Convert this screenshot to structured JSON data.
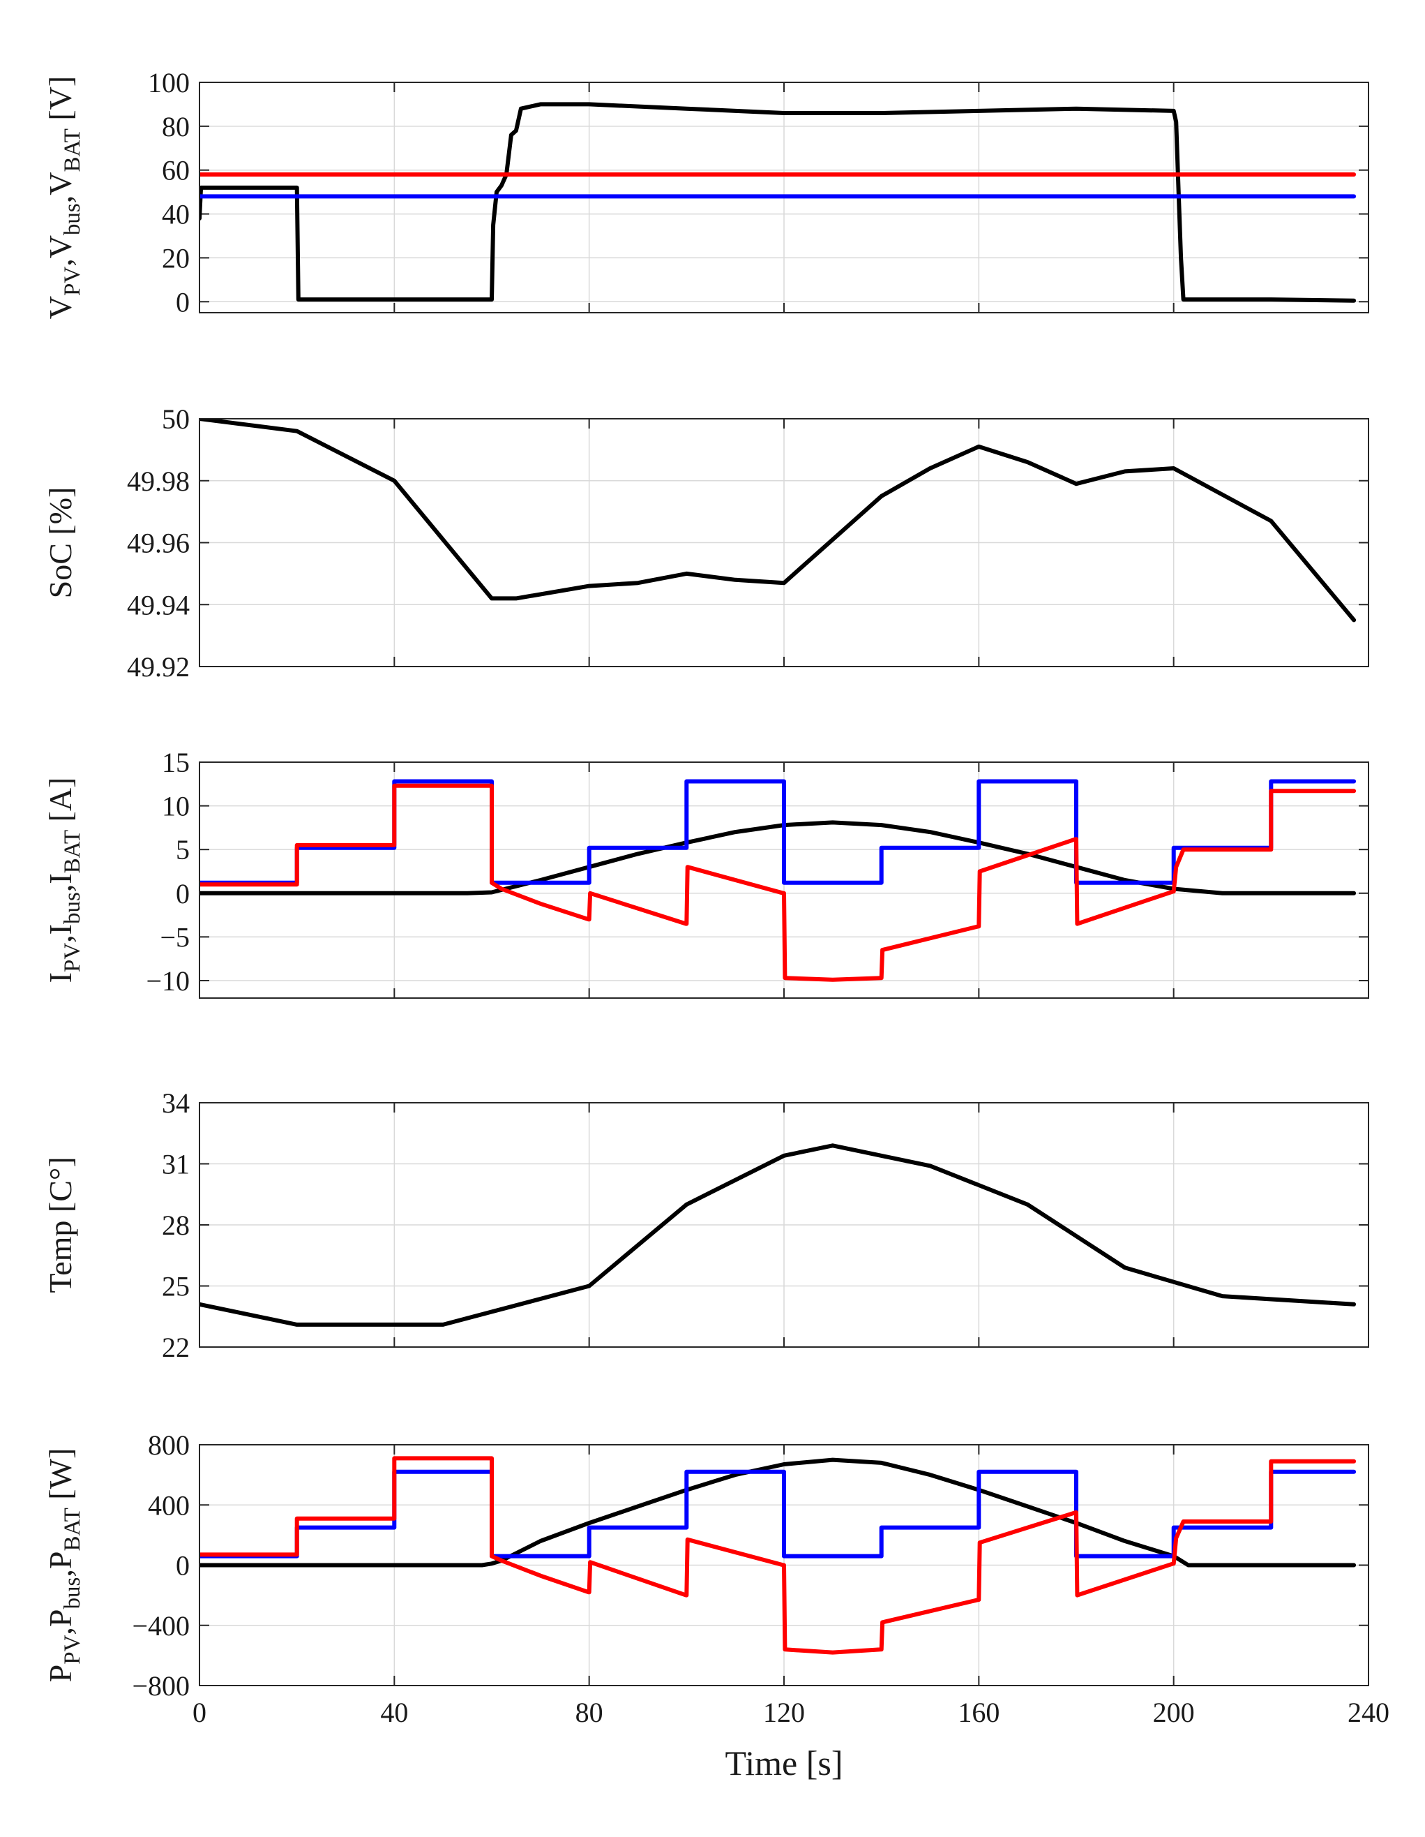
{
  "chart_data": [
    {
      "type": "line",
      "ylabel_parts": [
        [
          "V",
          ""
        ],
        [
          "PV",
          "sub"
        ],
        [
          ",V",
          ""
        ],
        [
          "bus",
          "sub"
        ],
        [
          ",V",
          ""
        ],
        [
          "BAT",
          "sub"
        ],
        [
          " [V]",
          ""
        ]
      ],
      "xlim": [
        0,
        240
      ],
      "ylim": [
        -5,
        100
      ],
      "yticks": [
        0,
        20,
        40,
        60,
        80,
        100
      ],
      "series": [
        {
          "name": "V_PV",
          "color": "#000000",
          "x": [
            0,
            0.3,
            1,
            20,
            20.3,
            21,
            40,
            60,
            60.3,
            61,
            62,
            63,
            64,
            65,
            66,
            70,
            80,
            100,
            120,
            130,
            140,
            160,
            180,
            200,
            200.5,
            201,
            201.5,
            202,
            220,
            237
          ],
          "y": [
            38,
            52,
            52,
            52,
            1,
            1,
            1,
            1,
            35,
            50,
            53,
            58,
            76,
            78,
            88,
            90,
            90,
            88,
            86,
            86,
            86,
            87,
            88,
            87,
            82,
            50,
            20,
            1,
            1,
            0.5
          ]
        },
        {
          "name": "V_bus",
          "color": "#ff0000",
          "x": [
            0,
            237
          ],
          "y": [
            58,
            58
          ]
        },
        {
          "name": "V_BAT",
          "color": "#0000ff",
          "x": [
            0,
            237
          ],
          "y": [
            48,
            48
          ]
        }
      ]
    },
    {
      "type": "line",
      "ylabel_parts": [
        [
          "SoC [%]",
          ""
        ]
      ],
      "xlim": [
        0,
        240
      ],
      "ylim": [
        49.92,
        50
      ],
      "yticks": [
        49.92,
        49.94,
        49.96,
        49.98,
        50
      ],
      "series": [
        {
          "name": "SoC",
          "color": "#000000",
          "x": [
            0,
            20,
            40,
            60,
            65,
            80,
            90,
            100,
            110,
            120,
            140,
            150,
            160,
            170,
            180,
            190,
            200,
            220,
            237
          ],
          "y": [
            50.0,
            49.996,
            49.98,
            49.942,
            49.942,
            49.946,
            49.947,
            49.95,
            49.948,
            49.947,
            49.975,
            49.984,
            49.991,
            49.986,
            49.979,
            49.983,
            49.984,
            49.967,
            49.935
          ]
        }
      ]
    },
    {
      "type": "line",
      "ylabel_parts": [
        [
          "I",
          ""
        ],
        [
          "PV",
          "sub"
        ],
        [
          ",I",
          ""
        ],
        [
          "bus",
          "sub"
        ],
        [
          ",I",
          ""
        ],
        [
          "BAT",
          "sub"
        ],
        [
          " [A]",
          ""
        ]
      ],
      "xlim": [
        0,
        240
      ],
      "ylim": [
        -12,
        15
      ],
      "yticks": [
        -10,
        -5,
        0,
        5,
        10,
        15
      ],
      "series": [
        {
          "name": "I_PV",
          "color": "#000000",
          "x": [
            0,
            55,
            60,
            70,
            80,
            90,
            100,
            110,
            120,
            130,
            140,
            150,
            160,
            170,
            180,
            190,
            200,
            210,
            237
          ],
          "y": [
            0,
            0,
            0.1,
            1.5,
            3,
            4.5,
            5.8,
            7,
            7.8,
            8.1,
            7.8,
            7,
            5.8,
            4.5,
            3,
            1.5,
            0.5,
            0,
            0
          ]
        },
        {
          "name": "I_BAT",
          "color": "#0000ff",
          "x": [
            0,
            20,
            20,
            40,
            40,
            60,
            60,
            80,
            80,
            100,
            100,
            120,
            120,
            140,
            140,
            160,
            160,
            180,
            180,
            200,
            200,
            220,
            220,
            237
          ],
          "y": [
            1.2,
            1.2,
            5.2,
            5.2,
            12.8,
            12.8,
            1.2,
            1.2,
            5.2,
            5.2,
            12.8,
            12.8,
            1.2,
            1.2,
            5.2,
            5.2,
            12.8,
            12.8,
            1.2,
            1.2,
            5.2,
            5.2,
            12.8,
            12.8
          ]
        },
        {
          "name": "I_bus",
          "color": "#ff0000",
          "x": [
            0,
            20,
            20,
            40,
            40,
            60,
            60,
            62,
            70,
            79.9,
            80,
            80.2,
            99.9,
            100,
            100.2,
            119.9,
            120,
            120.2,
            130,
            139.9,
            140,
            140.2,
            159.9,
            160,
            160.2,
            179.9,
            180,
            180.2,
            199.9,
            200,
            200.5,
            202,
            220,
            220,
            237
          ],
          "y": [
            1,
            1,
            5.5,
            5.5,
            12.3,
            12.3,
            1.2,
            0.5,
            -1.2,
            -3,
            -3,
            0,
            -3.5,
            -3.5,
            3,
            0,
            0,
            -9.7,
            -9.9,
            -9.7,
            -9.7,
            -6.5,
            -3.8,
            -3.8,
            2.5,
            6.2,
            6.2,
            -3.5,
            0.2,
            0.2,
            3,
            5,
            5,
            11.7,
            11.7
          ]
        }
      ]
    },
    {
      "type": "line",
      "ylabel_parts": [
        [
          "Temp [C°]",
          ""
        ]
      ],
      "xlim": [
        0,
        240
      ],
      "ylim": [
        22,
        34
      ],
      "yticks": [
        22,
        25,
        28,
        31,
        34
      ],
      "series": [
        {
          "name": "Temp",
          "color": "#000000",
          "x": [
            0,
            20,
            50,
            80,
            100,
            120,
            130,
            150,
            170,
            190,
            210,
            237
          ],
          "y": [
            24.1,
            23.1,
            23.1,
            25,
            29,
            31.4,
            31.9,
            30.9,
            29,
            25.9,
            24.5,
            24.1
          ]
        }
      ]
    },
    {
      "type": "line",
      "ylabel_parts": [
        [
          "P",
          ""
        ],
        [
          "PV",
          "sub"
        ],
        [
          ",P",
          ""
        ],
        [
          "bus",
          "sub"
        ],
        [
          ",P",
          ""
        ],
        [
          "BAT",
          "sub"
        ],
        [
          " [W]",
          ""
        ]
      ],
      "xlabel": "Time [s]",
      "xlim": [
        0,
        240
      ],
      "ylim": [
        -800,
        800
      ],
      "xticks": [
        0,
        40,
        80,
        120,
        160,
        200,
        240
      ],
      "yticks": [
        -800,
        -400,
        0,
        400,
        800
      ],
      "series": [
        {
          "name": "P_PV",
          "color": "#000000",
          "x": [
            0,
            58,
            60,
            62,
            70,
            80,
            90,
            100,
            110,
            120,
            130,
            140,
            150,
            160,
            170,
            180,
            190,
            200,
            203,
            237
          ],
          "y": [
            0,
            0,
            10,
            30,
            160,
            280,
            390,
            500,
            600,
            670,
            700,
            680,
            600,
            500,
            390,
            280,
            160,
            60,
            0,
            0
          ]
        },
        {
          "name": "P_BAT",
          "color": "#0000ff",
          "x": [
            0,
            20,
            20,
            40,
            40,
            60,
            60,
            80,
            80,
            100,
            100,
            120,
            120,
            140,
            140,
            160,
            160,
            180,
            180,
            200,
            200,
            220,
            220,
            237
          ],
          "y": [
            60,
            60,
            250,
            250,
            620,
            620,
            60,
            60,
            250,
            250,
            620,
            620,
            60,
            60,
            250,
            250,
            620,
            620,
            60,
            60,
            250,
            250,
            620,
            620
          ]
        },
        {
          "name": "P_bus",
          "color": "#ff0000",
          "x": [
            0,
            20,
            20,
            40,
            40,
            60,
            60,
            62,
            70,
            79.9,
            80,
            80.2,
            99.9,
            100,
            100.2,
            119.9,
            120,
            120.2,
            130,
            139.9,
            140,
            140.2,
            159.9,
            160,
            160.2,
            179.9,
            180,
            180.2,
            199.9,
            200,
            200.5,
            202,
            220,
            220,
            237
          ],
          "y": [
            70,
            70,
            310,
            310,
            710,
            710,
            60,
            30,
            -70,
            -180,
            -180,
            20,
            -200,
            -200,
            170,
            0,
            0,
            -560,
            -580,
            -560,
            -560,
            -380,
            -230,
            -230,
            150,
            350,
            350,
            -200,
            10,
            10,
            180,
            290,
            290,
            690,
            690
          ]
        }
      ]
    }
  ]
}
